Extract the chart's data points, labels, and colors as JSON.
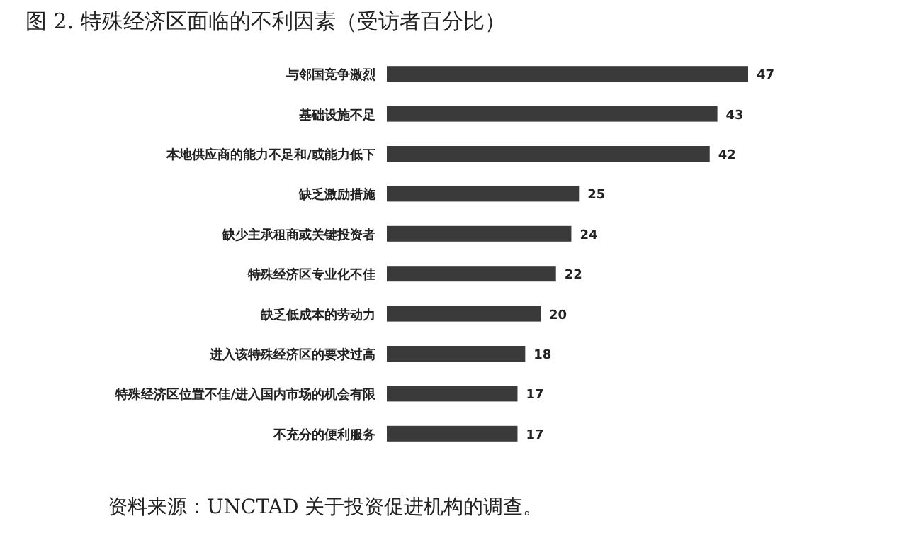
{
  "chart_data": {
    "type": "bar",
    "orientation": "horizontal",
    "title": "图 2. 特殊经济区面临的不利因素（受访者百分比）",
    "categories": [
      "与邻国竞争激烈",
      "基础设施不足",
      "本地供应商的能力不足和/或能力低下",
      "缺乏激励措施",
      "缺少主承租商或关键投资者",
      "特殊经济区专业化不佳",
      "缺乏低成本的劳动力",
      "进入该特殊经济区的要求过高",
      "特殊经济区位置不佳/进入国内市场的机会有限",
      "不充分的便利服务"
    ],
    "values": [
      47,
      43,
      42,
      25,
      24,
      22,
      20,
      18,
      17,
      17
    ],
    "color": "#3a3a3a",
    "data_labels": true,
    "annotations": [
      "资料来源：UNCTAD 关于投资促进机构的调查。"
    ]
  }
}
